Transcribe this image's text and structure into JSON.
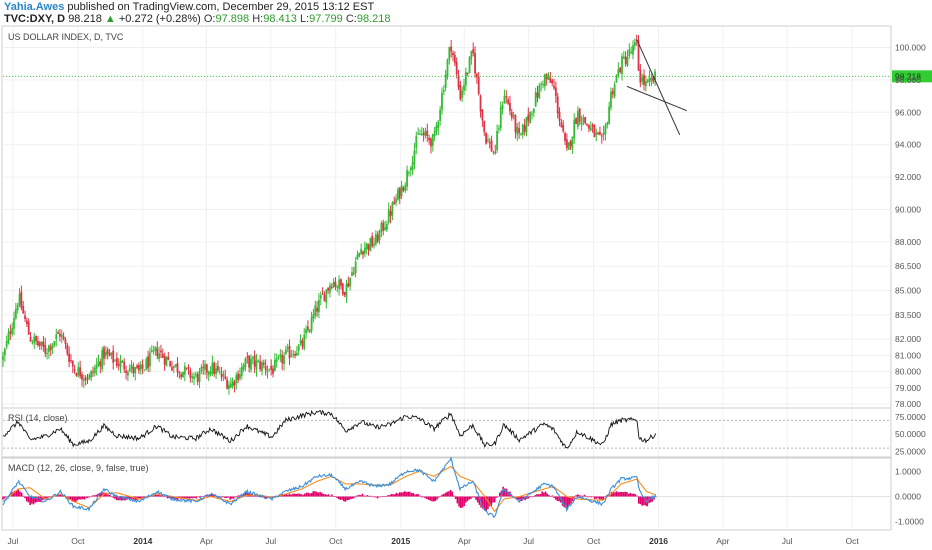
{
  "header": {
    "author": "Yahia.Awes",
    "published_text": "published on TradingView.com, December 29, 2015 13:12 EST",
    "symbol": "TVC:DXY, D",
    "last": "98.218",
    "change_arrow": "▲",
    "change": "+0.272 (+0.28%)",
    "o_label": "O:",
    "o_value": "97.898",
    "h_label": "H:",
    "h_value": "98.413",
    "l_label": "L:",
    "l_value": "97.799",
    "c_label": "C:",
    "c_value": "98.218"
  },
  "colors": {
    "up_candle": "#33bb33",
    "down_candle": "#dd3344",
    "price_line": "#33cc33",
    "rsi_line": "#111111",
    "macd_line": "#3a8fd8",
    "signal_line": "#ff8c1a",
    "histogram": "#e0006a",
    "trend_line": "#333333"
  },
  "chart_data": [
    {
      "type": "candlestick",
      "title": "US DOLLAR INDEX, D, TVC",
      "ylim": [
        78.0,
        101.2
      ],
      "ytick_labels": [
        "100.000",
        "98.000",
        "96.000",
        "94.000",
        "92.000",
        "90.000",
        "88.000",
        "86.500",
        "85.000",
        "83.500",
        "82.000",
        "81.000",
        "80.000",
        "79.000",
        "78.000"
      ],
      "current_price_label": "98.218",
      "current_price": 98.218,
      "x_range": [
        "2013-06-17",
        "2016-11-25"
      ],
      "x_tick_labels": [
        {
          "date": "2013-07-01",
          "label": "Jul",
          "bold": false
        },
        {
          "date": "2013-10-01",
          "label": "Oct",
          "bold": false
        },
        {
          "date": "2014-01-01",
          "label": "2014",
          "bold": true
        },
        {
          "date": "2014-04-01",
          "label": "Apr",
          "bold": false
        },
        {
          "date": "2014-07-01",
          "label": "Jul",
          "bold": false
        },
        {
          "date": "2014-10-01",
          "label": "Oct",
          "bold": false
        },
        {
          "date": "2015-01-01",
          "label": "2015",
          "bold": true
        },
        {
          "date": "2015-04-01",
          "label": "Apr",
          "bold": false
        },
        {
          "date": "2015-07-01",
          "label": "Jul",
          "bold": false
        },
        {
          "date": "2015-10-01",
          "label": "Oct",
          "bold": false
        },
        {
          "date": "2016-01-01",
          "label": "2016",
          "bold": true
        },
        {
          "date": "2016-04-01",
          "label": "Apr",
          "bold": false
        },
        {
          "date": "2016-07-01",
          "label": "Jul",
          "bold": false
        },
        {
          "date": "2016-10-01",
          "label": "Oct",
          "bold": false
        }
      ],
      "close_path": [
        [
          "2013-06-17",
          80.8
        ],
        [
          "2013-07-09",
          84.6
        ],
        [
          "2013-07-25",
          82.1
        ],
        [
          "2013-08-16",
          81.3
        ],
        [
          "2013-09-06",
          82.4
        ],
        [
          "2013-09-25",
          80.2
        ],
        [
          "2013-10-17",
          79.6
        ],
        [
          "2013-11-07",
          81.1
        ],
        [
          "2013-11-25",
          80.6
        ],
        [
          "2013-12-27",
          79.9
        ],
        [
          "2014-01-21",
          81.3
        ],
        [
          "2014-02-12",
          80.4
        ],
        [
          "2014-03-17",
          79.6
        ],
        [
          "2014-04-07",
          80.3
        ],
        [
          "2014-05-05",
          79.2
        ],
        [
          "2014-05-28",
          80.6
        ],
        [
          "2014-06-18",
          80.4
        ],
        [
          "2014-07-03",
          80.1
        ],
        [
          "2014-07-22",
          81.0
        ],
        [
          "2014-08-14",
          81.6
        ],
        [
          "2014-09-04",
          83.9
        ],
        [
          "2014-09-25",
          85.6
        ],
        [
          "2014-10-15",
          85.1
        ],
        [
          "2014-11-06",
          87.6
        ],
        [
          "2014-11-26",
          88.0
        ],
        [
          "2014-12-17",
          89.8
        ],
        [
          "2015-01-08",
          91.9
        ],
        [
          "2015-01-27",
          94.7
        ],
        [
          "2015-02-17",
          94.2
        ],
        [
          "2015-03-13",
          100.3
        ],
        [
          "2015-03-26",
          97.0
        ],
        [
          "2015-04-13",
          99.7
        ],
        [
          "2015-04-30",
          94.6
        ],
        [
          "2015-05-14",
          93.4
        ],
        [
          "2015-05-27",
          97.3
        ],
        [
          "2015-06-18",
          94.3
        ],
        [
          "2015-07-23",
          98.2
        ],
        [
          "2015-08-05",
          97.6
        ],
        [
          "2015-08-24",
          93.4
        ],
        [
          "2015-09-08",
          96.0
        ],
        [
          "2015-10-14",
          94.0
        ],
        [
          "2015-10-26",
          97.2
        ],
        [
          "2015-11-09",
          99.0
        ],
        [
          "2015-12-02",
          100.2
        ],
        [
          "2015-12-04",
          98.3
        ],
        [
          "2015-12-15",
          97.6
        ],
        [
          "2015-12-29",
          98.2
        ]
      ],
      "trend_lines": [
        {
          "from": [
            "2015-12-01",
            100.5
          ],
          "to": [
            "2016-01-31",
            94.6
          ]
        },
        {
          "from": [
            "2015-11-17",
            97.6
          ],
          "to": [
            "2016-02-10",
            96.1
          ]
        }
      ]
    },
    {
      "type": "line",
      "title": "RSI (14, close)",
      "ylim": [
        20,
        85
      ],
      "ytick_labels": [
        "75.0000",
        "50.0000",
        "25.0000"
      ],
      "guide_levels": [
        70,
        30
      ],
      "x_range": [
        "2013-06-17",
        "2016-11-25"
      ],
      "values_path": [
        [
          "2013-06-17",
          48
        ],
        [
          "2013-07-09",
          68
        ],
        [
          "2013-07-25",
          42
        ],
        [
          "2013-08-16",
          47
        ],
        [
          "2013-09-06",
          58
        ],
        [
          "2013-09-25",
          35
        ],
        [
          "2013-10-17",
          40
        ],
        [
          "2013-11-07",
          62
        ],
        [
          "2013-11-25",
          48
        ],
        [
          "2013-12-27",
          44
        ],
        [
          "2014-01-21",
          62
        ],
        [
          "2014-02-12",
          46
        ],
        [
          "2014-03-17",
          44
        ],
        [
          "2014-04-07",
          58
        ],
        [
          "2014-05-05",
          40
        ],
        [
          "2014-05-28",
          62
        ],
        [
          "2014-06-18",
          52
        ],
        [
          "2014-07-03",
          46
        ],
        [
          "2014-07-22",
          70
        ],
        [
          "2014-08-14",
          77
        ],
        [
          "2014-09-04",
          82
        ],
        [
          "2014-09-25",
          80
        ],
        [
          "2014-10-15",
          55
        ],
        [
          "2014-11-06",
          68
        ],
        [
          "2014-11-26",
          60
        ],
        [
          "2014-12-17",
          64
        ],
        [
          "2015-01-08",
          76
        ],
        [
          "2015-01-27",
          73
        ],
        [
          "2015-02-17",
          58
        ],
        [
          "2015-03-13",
          80
        ],
        [
          "2015-03-26",
          48
        ],
        [
          "2015-04-13",
          63
        ],
        [
          "2015-04-30",
          34
        ],
        [
          "2015-05-14",
          36
        ],
        [
          "2015-05-27",
          64
        ],
        [
          "2015-06-18",
          42
        ],
        [
          "2015-07-23",
          65
        ],
        [
          "2015-08-05",
          57
        ],
        [
          "2015-08-24",
          29
        ],
        [
          "2015-09-08",
          54
        ],
        [
          "2015-10-14",
          34
        ],
        [
          "2015-10-26",
          64
        ],
        [
          "2015-11-09",
          70
        ],
        [
          "2015-12-02",
          71
        ],
        [
          "2015-12-04",
          44
        ],
        [
          "2015-12-15",
          41
        ],
        [
          "2015-12-29",
          51
        ]
      ]
    },
    {
      "type": "bar",
      "title": "MACD (12, 26, close, 9, false, true)",
      "ylim": [
        -1.25,
        1.45
      ],
      "ytick_labels": [
        "1.0000",
        "0.0000",
        "-1.0000"
      ],
      "x_range": [
        "2013-06-17",
        "2016-11-25"
      ],
      "series": [
        {
          "name": "MACD",
          "values_path": [
            [
              "2013-06-17",
              -0.3
            ],
            [
              "2013-07-09",
              0.6
            ],
            [
              "2013-07-25",
              0.0
            ],
            [
              "2013-08-16",
              -0.2
            ],
            [
              "2013-09-06",
              0.2
            ],
            [
              "2013-09-25",
              -0.4
            ],
            [
              "2013-10-17",
              -0.5
            ],
            [
              "2013-11-07",
              0.3
            ],
            [
              "2013-11-25",
              0.0
            ],
            [
              "2013-12-27",
              -0.2
            ],
            [
              "2014-01-21",
              0.2
            ],
            [
              "2014-02-12",
              -0.1
            ],
            [
              "2014-03-17",
              -0.2
            ],
            [
              "2014-04-07",
              0.1
            ],
            [
              "2014-05-05",
              -0.3
            ],
            [
              "2014-05-28",
              0.2
            ],
            [
              "2014-06-18",
              0.0
            ],
            [
              "2014-07-03",
              -0.1
            ],
            [
              "2014-07-22",
              0.2
            ],
            [
              "2014-08-14",
              0.4
            ],
            [
              "2014-09-04",
              0.8
            ],
            [
              "2014-09-25",
              0.85
            ],
            [
              "2014-10-15",
              0.3
            ],
            [
              "2014-11-06",
              0.6
            ],
            [
              "2014-11-26",
              0.4
            ],
            [
              "2014-12-17",
              0.5
            ],
            [
              "2015-01-08",
              1.0
            ],
            [
              "2015-01-27",
              1.05
            ],
            [
              "2015-02-17",
              0.6
            ],
            [
              "2015-03-13",
              1.5
            ],
            [
              "2015-03-26",
              0.3
            ],
            [
              "2015-04-13",
              0.6
            ],
            [
              "2015-04-30",
              -0.6
            ],
            [
              "2015-05-14",
              -0.8
            ],
            [
              "2015-05-27",
              0.3
            ],
            [
              "2015-06-18",
              -0.2
            ],
            [
              "2015-07-23",
              0.5
            ],
            [
              "2015-08-05",
              0.4
            ],
            [
              "2015-08-24",
              -0.5
            ],
            [
              "2015-09-08",
              0.0
            ],
            [
              "2015-10-14",
              -0.3
            ],
            [
              "2015-10-26",
              0.3
            ],
            [
              "2015-11-09",
              0.7
            ],
            [
              "2015-12-02",
              0.75
            ],
            [
              "2015-12-04",
              0.3
            ],
            [
              "2015-12-15",
              -0.2
            ],
            [
              "2015-12-29",
              0.05
            ]
          ]
        },
        {
          "name": "Signal",
          "values_path": [
            [
              "2013-06-17",
              -0.2
            ],
            [
              "2013-07-09",
              0.3
            ],
            [
              "2013-07-25",
              0.35
            ],
            [
              "2013-08-16",
              -0.1
            ],
            [
              "2013-09-06",
              0.1
            ],
            [
              "2013-09-25",
              -0.2
            ],
            [
              "2013-10-17",
              -0.45
            ],
            [
              "2013-11-07",
              0.1
            ],
            [
              "2013-11-25",
              0.15
            ],
            [
              "2013-12-27",
              -0.1
            ],
            [
              "2014-01-21",
              0.1
            ],
            [
              "2014-02-12",
              0.0
            ],
            [
              "2014-03-17",
              -0.15
            ],
            [
              "2014-04-07",
              0.0
            ],
            [
              "2014-05-05",
              -0.2
            ],
            [
              "2014-05-28",
              0.05
            ],
            [
              "2014-06-18",
              0.05
            ],
            [
              "2014-07-03",
              -0.05
            ],
            [
              "2014-07-22",
              0.1
            ],
            [
              "2014-08-14",
              0.3
            ],
            [
              "2014-09-04",
              0.6
            ],
            [
              "2014-09-25",
              0.8
            ],
            [
              "2014-10-15",
              0.5
            ],
            [
              "2014-11-06",
              0.5
            ],
            [
              "2014-11-26",
              0.45
            ],
            [
              "2014-12-17",
              0.45
            ],
            [
              "2015-01-08",
              0.8
            ],
            [
              "2015-01-27",
              1.0
            ],
            [
              "2015-02-17",
              0.8
            ],
            [
              "2015-03-13",
              1.2
            ],
            [
              "2015-03-26",
              0.8
            ],
            [
              "2015-04-13",
              0.6
            ],
            [
              "2015-04-30",
              0.0
            ],
            [
              "2015-05-14",
              -0.6
            ],
            [
              "2015-05-27",
              -0.1
            ],
            [
              "2015-06-18",
              0.0
            ],
            [
              "2015-07-23",
              0.3
            ],
            [
              "2015-08-05",
              0.4
            ],
            [
              "2015-08-24",
              0.0
            ],
            [
              "2015-09-08",
              -0.1
            ],
            [
              "2015-10-14",
              -0.15
            ],
            [
              "2015-10-26",
              0.1
            ],
            [
              "2015-11-09",
              0.5
            ],
            [
              "2015-12-02",
              0.7
            ],
            [
              "2015-12-04",
              0.6
            ],
            [
              "2015-12-15",
              0.2
            ],
            [
              "2015-12-29",
              0.05
            ]
          ]
        }
      ]
    }
  ]
}
